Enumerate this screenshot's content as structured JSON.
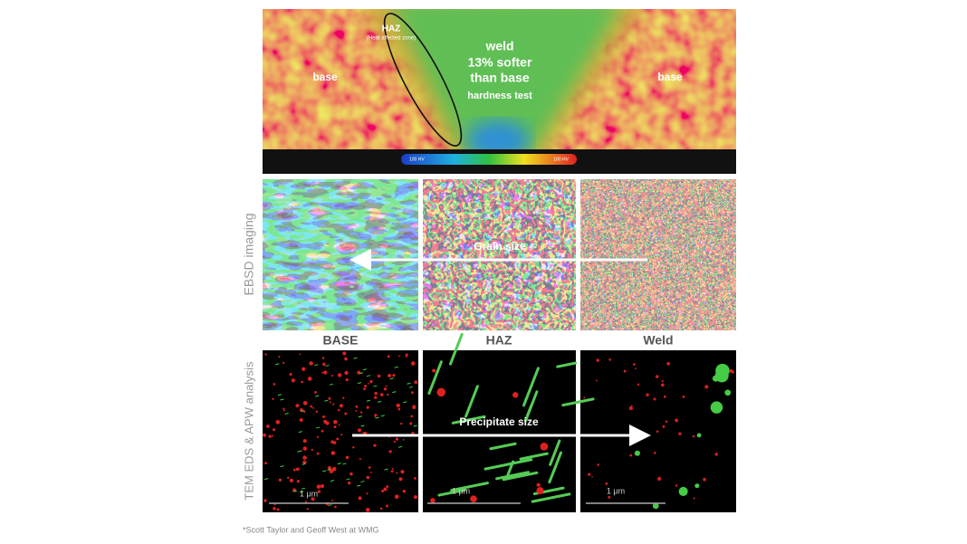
{
  "hardness_map": {
    "haz_label": "HAZ",
    "haz_sublabel": "(Heat affected zone)",
    "weld_lines": [
      "weld",
      "13% softer",
      "than base"
    ],
    "test_label": "hardness test",
    "base_left": "base",
    "base_right": "base",
    "scale_min_label": "100 HV",
    "scale_max_label": "180 HV"
  },
  "ebsd": {
    "axis_label": "EBSD imaging",
    "arrow_label": "Grain size"
  },
  "columns": [
    "BASE",
    "HAZ",
    "Weld"
  ],
  "tem": {
    "axis_label": "TEM EDS & APW analysis",
    "arrow_label": "Precipitate size",
    "scale_bars": [
      "1 μm",
      "1 μm",
      "1 μm"
    ]
  },
  "footnote": "*Scott Taylor and Geoff West at WMG"
}
